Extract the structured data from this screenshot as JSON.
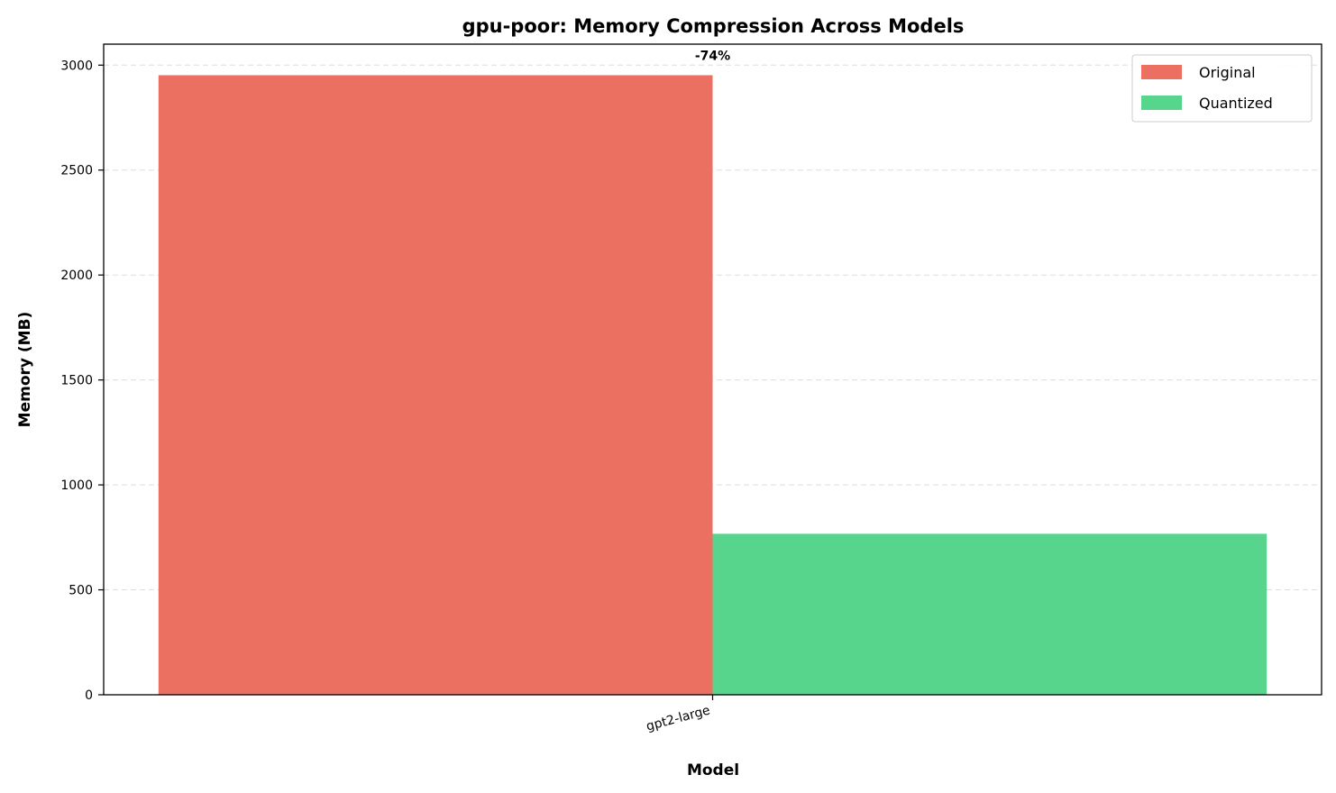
{
  "chart_data": {
    "type": "bar",
    "title": "gpu-poor: Memory Compression Across Models",
    "xlabel": "Model",
    "ylabel": "Memory (MB)",
    "categories": [
      "gpt2-large"
    ],
    "series": [
      {
        "name": "Original",
        "values": [
          2952
        ],
        "color": "#eb7062"
      },
      {
        "name": "Quantized",
        "values": [
          767
        ],
        "color": "#57d58c"
      }
    ],
    "annotations": [
      "-74%"
    ],
    "ylim": [
      0,
      3100
    ],
    "yticks": [
      0,
      500,
      1000,
      1500,
      2000,
      2500,
      3000
    ],
    "grid": "y-dashed",
    "legend_position": "top-right"
  }
}
